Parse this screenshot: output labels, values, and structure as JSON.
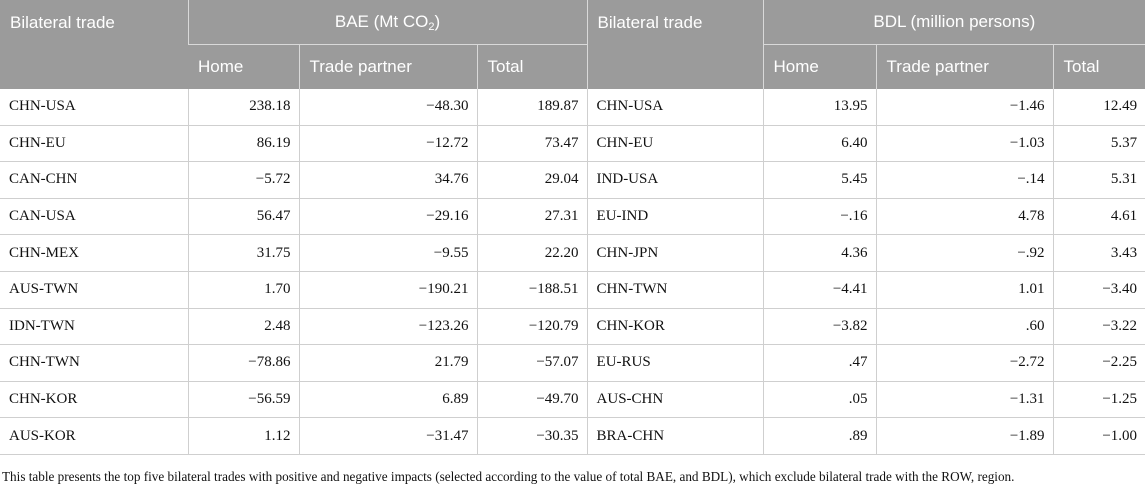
{
  "header": {
    "left_group_title": "Bilateral trade",
    "bae_title_prefix": "BAE (Mt CO",
    "bae_title_sub": "2",
    "bae_title_suffix": ")",
    "right_group_title": "Bilateral trade",
    "bdl_title": "BDL (million persons)",
    "sub_home": "Home",
    "sub_partner": "Trade partner",
    "sub_total": "Total"
  },
  "rows": [
    {
      "bae_pair": "CHN-USA",
      "bae_home": "238.18",
      "bae_partner": "−48.30",
      "bae_total": "189.87",
      "bdl_pair": "CHN-USA",
      "bdl_home": "13.95",
      "bdl_partner": "−1.46",
      "bdl_total": "12.49"
    },
    {
      "bae_pair": "CHN-EU",
      "bae_home": "86.19",
      "bae_partner": "−12.72",
      "bae_total": "73.47",
      "bdl_pair": "CHN-EU",
      "bdl_home": "6.40",
      "bdl_partner": "−1.03",
      "bdl_total": "5.37"
    },
    {
      "bae_pair": "CAN-CHN",
      "bae_home": "−5.72",
      "bae_partner": "34.76",
      "bae_total": "29.04",
      "bdl_pair": "IND-USA",
      "bdl_home": "5.45",
      "bdl_partner": "−.14",
      "bdl_total": "5.31"
    },
    {
      "bae_pair": "CAN-USA",
      "bae_home": "56.47",
      "bae_partner": "−29.16",
      "bae_total": "27.31",
      "bdl_pair": "EU-IND",
      "bdl_home": "−.16",
      "bdl_partner": "4.78",
      "bdl_total": "4.61"
    },
    {
      "bae_pair": "CHN-MEX",
      "bae_home": "31.75",
      "bae_partner": "−9.55",
      "bae_total": "22.20",
      "bdl_pair": "CHN-JPN",
      "bdl_home": "4.36",
      "bdl_partner": "−.92",
      "bdl_total": "3.43"
    },
    {
      "bae_pair": "AUS-TWN",
      "bae_home": "1.70",
      "bae_partner": "−190.21",
      "bae_total": "−188.51",
      "bdl_pair": "CHN-TWN",
      "bdl_home": "−4.41",
      "bdl_partner": "1.01",
      "bdl_total": "−3.40"
    },
    {
      "bae_pair": "IDN-TWN",
      "bae_home": "2.48",
      "bae_partner": "−123.26",
      "bae_total": "−120.79",
      "bdl_pair": "CHN-KOR",
      "bdl_home": "−3.82",
      "bdl_partner": ".60",
      "bdl_total": "−3.22"
    },
    {
      "bae_pair": "CHN-TWN",
      "bae_home": "−78.86",
      "bae_partner": "21.79",
      "bae_total": "−57.07",
      "bdl_pair": "EU-RUS",
      "bdl_home": ".47",
      "bdl_partner": "−2.72",
      "bdl_total": "−2.25"
    },
    {
      "bae_pair": "CHN-KOR",
      "bae_home": "−56.59",
      "bae_partner": "6.89",
      "bae_total": "−49.70",
      "bdl_pair": "AUS-CHN",
      "bdl_home": ".05",
      "bdl_partner": "−1.31",
      "bdl_total": "−1.25"
    },
    {
      "bae_pair": "AUS-KOR",
      "bae_home": "1.12",
      "bae_partner": "−31.47",
      "bae_total": "−30.35",
      "bdl_pair": "BRA-CHN",
      "bdl_home": ".89",
      "bdl_partner": "−1.89",
      "bdl_total": "−1.00"
    }
  ],
  "footnote": "This table presents the top five bilateral trades with positive and negative impacts (selected according to the value of total BAE, and BDL), which exclude bilateral trade with the ROW, region."
}
